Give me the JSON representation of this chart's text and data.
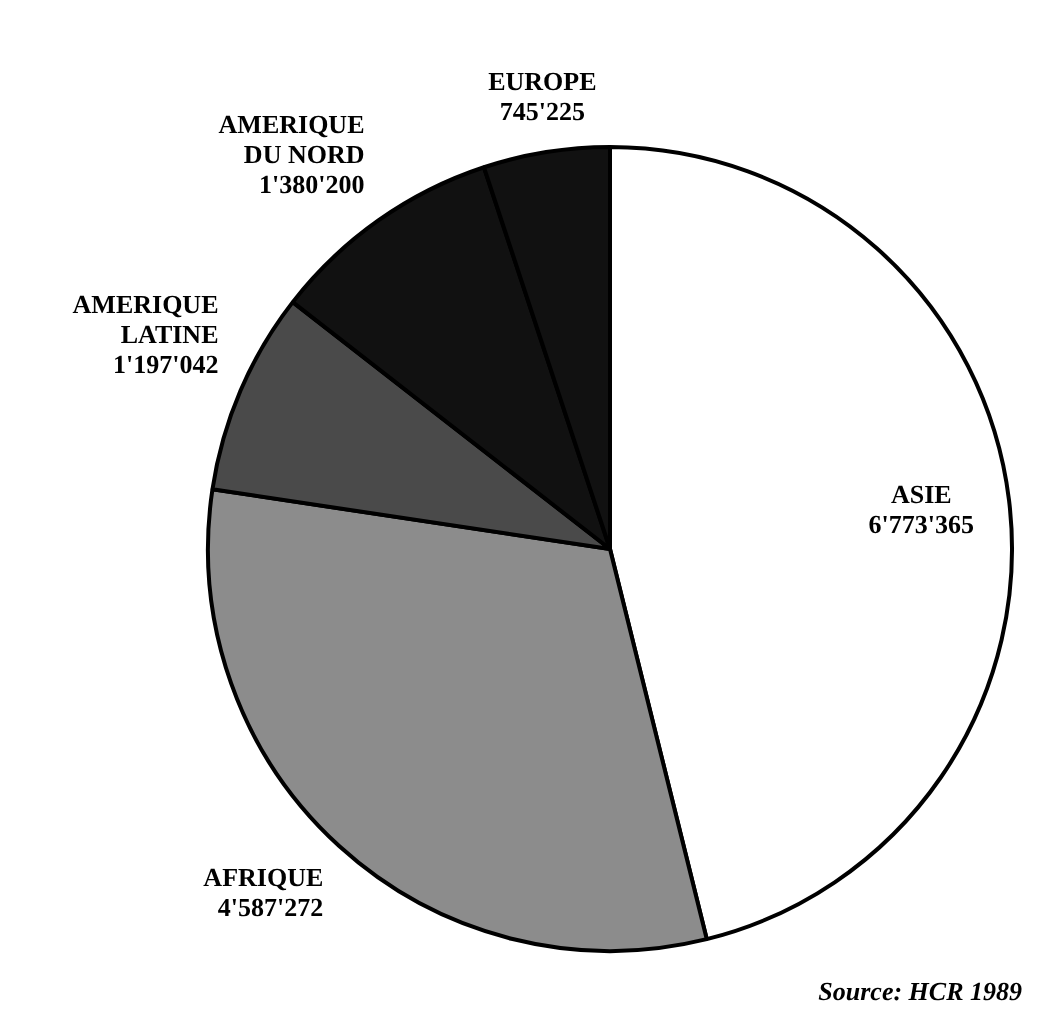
{
  "chart_data": {
    "type": "pie",
    "categories": [
      "ASIE",
      "AFRIQUE",
      "AMERIQUE LATINE",
      "AMERIQUE DU NORD",
      "EUROPE"
    ],
    "values": [
      6773365,
      4587272,
      1197042,
      1380200,
      745225
    ],
    "value_labels": [
      "6'773'365",
      "4'587'272",
      "1'197'042",
      "1'380'200",
      "745'225"
    ],
    "colors": [
      "#ffffff",
      "#8c8c8c",
      "#4a4a4a",
      "#111111",
      "#111111"
    ],
    "annotations": [
      "Source: HCR 1989"
    ],
    "legend": false
  }
}
